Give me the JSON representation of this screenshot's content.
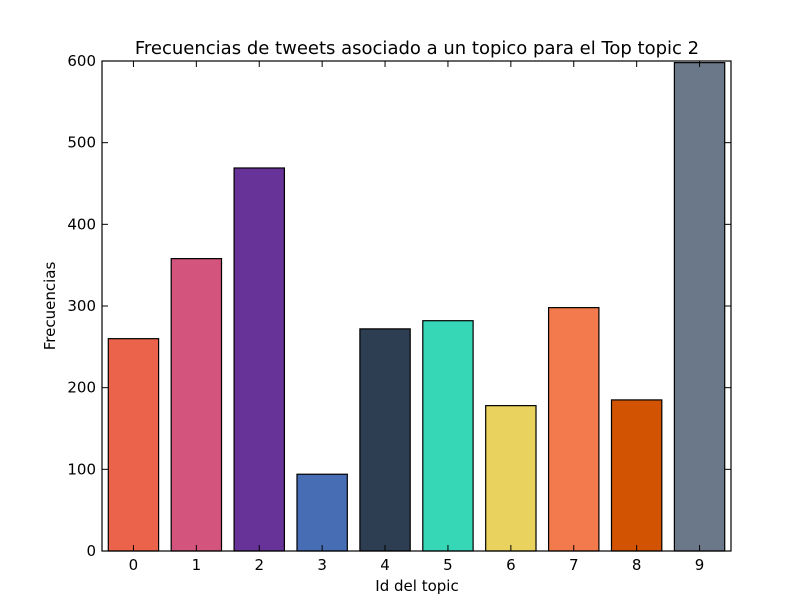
{
  "chart_data": {
    "type": "bar",
    "title": "Frecuencias de tweets asociado a un topico para el Top topic 2",
    "xlabel": "Id del topic",
    "ylabel": "Frecuencias",
    "categories": [
      "0",
      "1",
      "2",
      "3",
      "4",
      "5",
      "6",
      "7",
      "8",
      "9"
    ],
    "values": [
      260,
      358,
      469,
      94,
      272,
      282,
      178,
      298,
      185,
      598
    ],
    "colors": [
      "#ec634b",
      "#d3547c",
      "#683398",
      "#476db4",
      "#2d3d52",
      "#35d7b6",
      "#e9d35e",
      "#f27a4c",
      "#d25302",
      "#6b7889"
    ],
    "ylim": [
      0,
      600
    ],
    "yticks": [
      "0",
      "100",
      "200",
      "300",
      "400",
      "500",
      "600"
    ],
    "grid": false,
    "legend": "none"
  }
}
